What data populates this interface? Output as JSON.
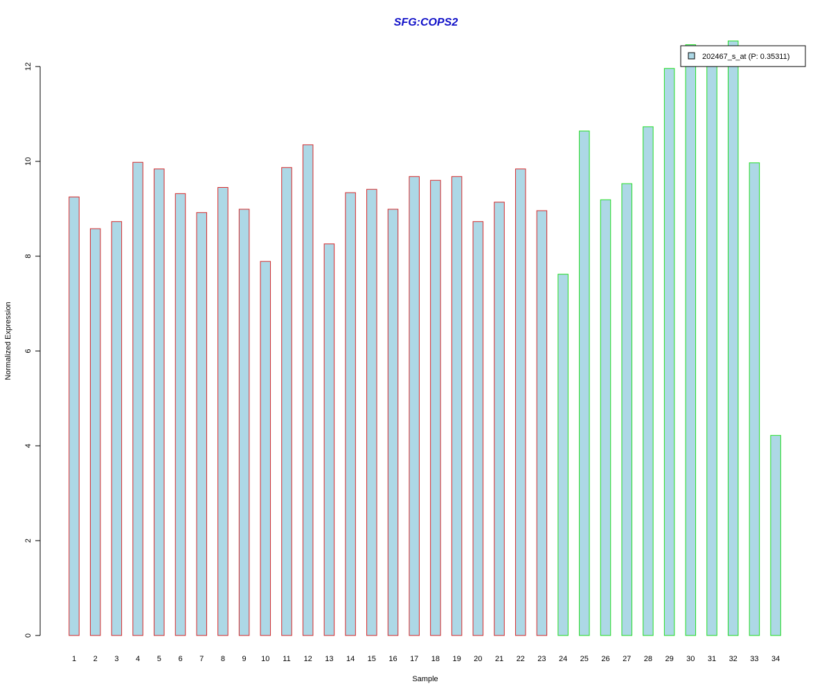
{
  "chart_data": {
    "type": "bar",
    "title": "SFG:COPS2",
    "xlabel": "Sample",
    "ylabel": "Normalized Expression",
    "ylim": [
      0,
      12
    ],
    "yticks": [
      "0",
      "2",
      "4",
      "6",
      "8",
      "10",
      "12"
    ],
    "categories": [
      "1",
      "2",
      "3",
      "4",
      "5",
      "6",
      "7",
      "8",
      "9",
      "10",
      "11",
      "12",
      "13",
      "14",
      "15",
      "16",
      "17",
      "18",
      "19",
      "20",
      "21",
      "22",
      "23",
      "24",
      "25",
      "26",
      "27",
      "28",
      "29",
      "30",
      "31",
      "32",
      "33",
      "34"
    ],
    "series": [
      {
        "name": "202467_s_at (P: 0.35311)",
        "values": [
          9.25,
          8.58,
          8.73,
          9.98,
          9.84,
          9.32,
          8.92,
          9.45,
          8.99,
          7.89,
          9.87,
          10.35,
          8.26,
          9.34,
          9.41,
          8.99,
          9.68,
          9.6,
          9.68,
          8.73,
          9.14,
          9.84,
          8.96,
          7.62,
          10.64,
          9.19,
          9.53,
          10.73,
          11.96,
          12.46,
          12.16,
          12.54,
          9.97,
          4.22
        ]
      }
    ],
    "groups": [
      {
        "samples": "1-23",
        "border_color": "#d62728"
      },
      {
        "samples": "24-34",
        "border_color": "#22dd22"
      }
    ],
    "fill_color": "#add8e6",
    "title_color": "#1010c8",
    "grid": false,
    "legend_position": "top-right"
  }
}
